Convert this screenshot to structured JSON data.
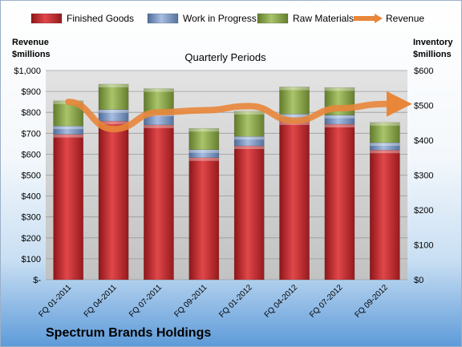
{
  "company": "Spectrum Brands Holdings",
  "chart_data": {
    "type": "bar",
    "stacked": true,
    "title": "Quarterly Periods",
    "left_axis_label": [
      "Revenue",
      "$millions"
    ],
    "right_axis_label": [
      "Inventory",
      "$millions"
    ],
    "categories": [
      "FQ 01-2011",
      "FQ 04-2011",
      "FQ 07-2011",
      "FQ 09-2011",
      "FQ 01-2012",
      "FQ 04-2012",
      "FQ 07-2012",
      "FQ 09-2012"
    ],
    "series": [
      {
        "name": "Finished Goods",
        "color": "#c0282b",
        "axis": "right",
        "values": [
          417,
          455,
          444,
          350,
          384,
          453,
          446,
          372
        ]
      },
      {
        "name": "Work in Progress",
        "color": "#6f8fc0",
        "axis": "right",
        "values": [
          24,
          33,
          34,
          23,
          27,
          22,
          26,
          21
        ]
      },
      {
        "name": "Raw Materials",
        "color": "#8aa64a",
        "axis": "right",
        "values": [
          72,
          73,
          70,
          61,
          72,
          78,
          79,
          58
        ]
      },
      {
        "name": "Revenue",
        "type": "line",
        "color": "#e8863a",
        "axis": "left",
        "values": [
          850,
          720,
          800,
          810,
          830,
          760,
          820,
          840
        ]
      }
    ],
    "left_axis": {
      "min": 0,
      "max": 1000,
      "step": 100,
      "tick_labels": [
        "$-",
        "$100",
        "$200",
        "$300",
        "$400",
        "$500",
        "$600",
        "$700",
        "$800",
        "$900",
        "$1,000"
      ]
    },
    "right_axis": {
      "min": 0,
      "max": 600,
      "step": 100,
      "tick_labels": [
        "$0",
        "$100",
        "$200",
        "$300",
        "$400",
        "$500",
        "$600"
      ]
    },
    "legend_position": "top",
    "grid": true
  }
}
